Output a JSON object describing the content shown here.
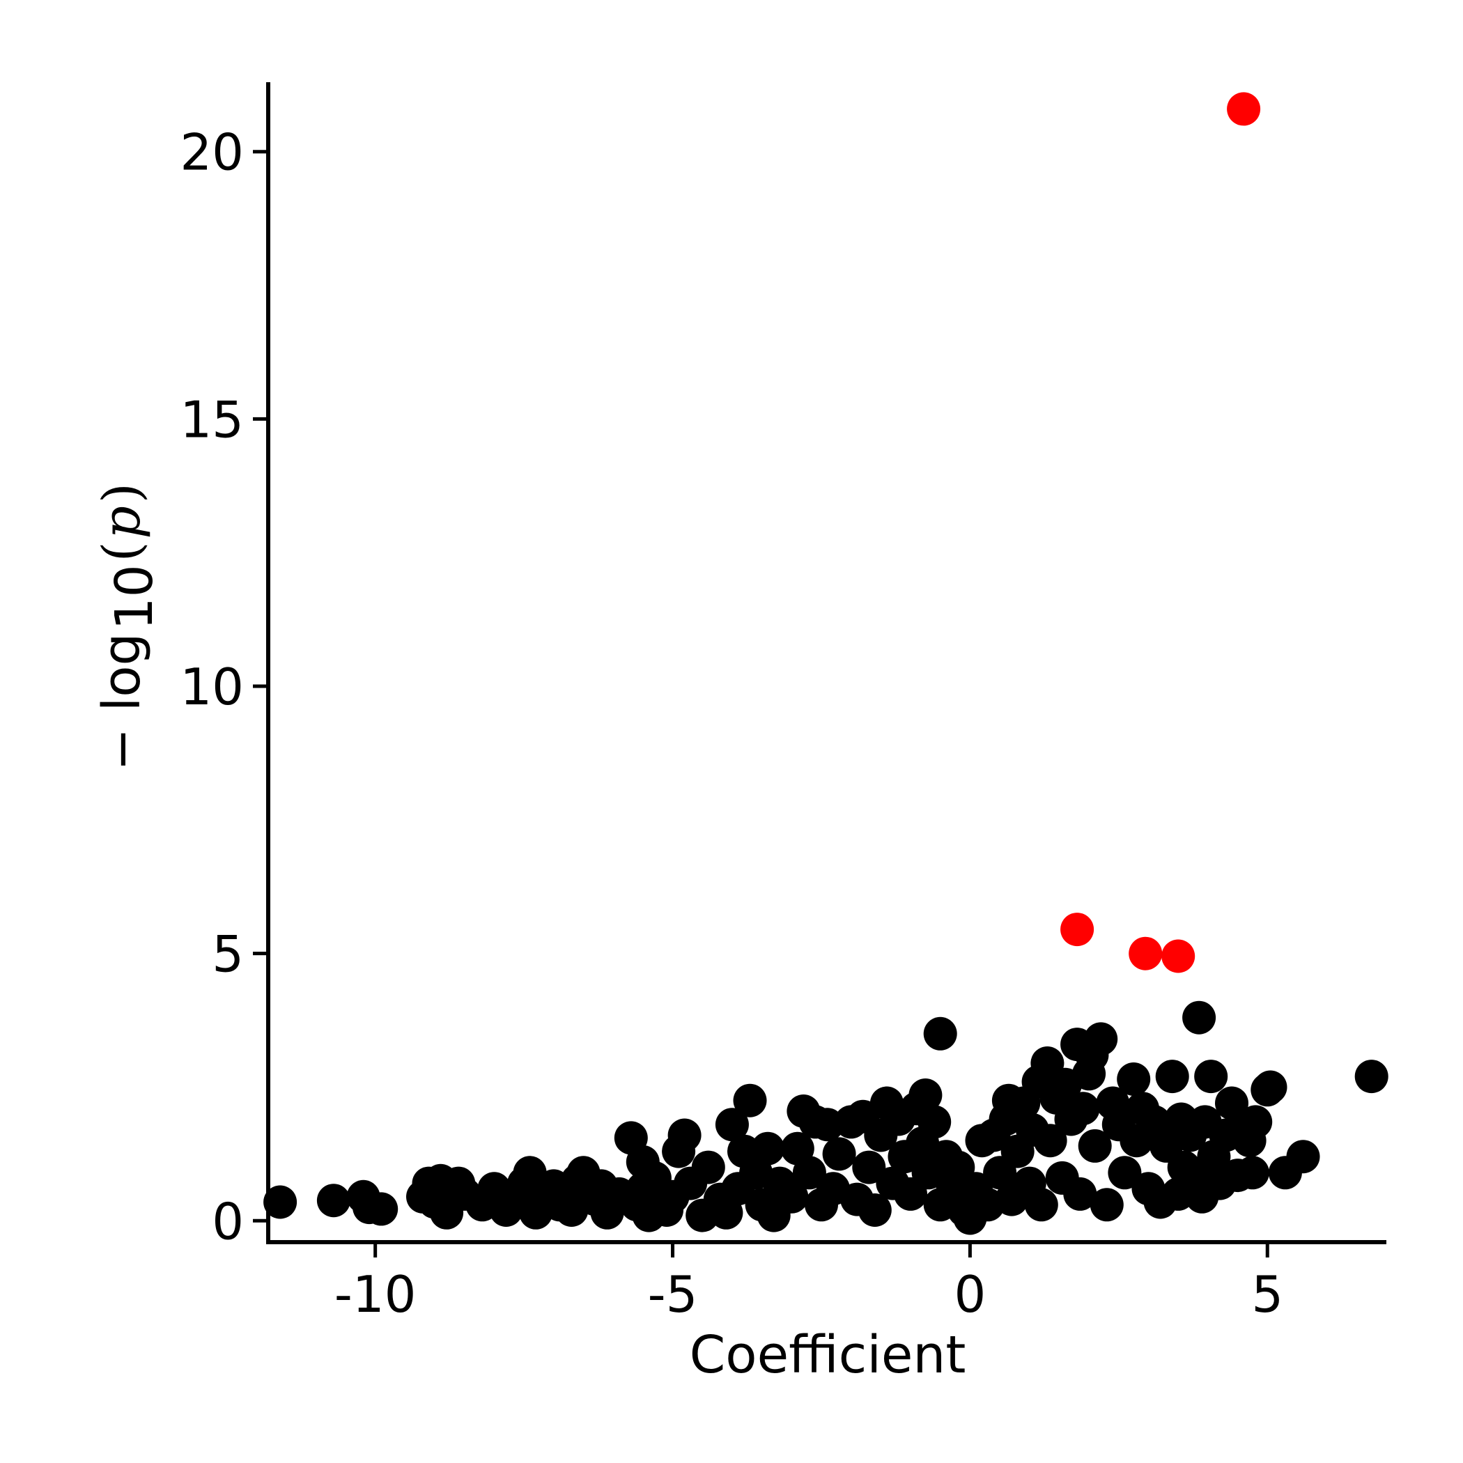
{
  "chart_data": {
    "type": "scatter",
    "title": "",
    "xlabel": "Coefficient",
    "ylabel": "− log10(p)",
    "ylabel_parts": {
      "prefix": "− log",
      "subscript": "10",
      "open": "(",
      "var": "p",
      "close": ")"
    },
    "xlim": [
      -11.8,
      7.0
    ],
    "ylim": [
      -0.4,
      21.3
    ],
    "xticks": [
      -10,
      -5,
      0,
      5
    ],
    "xtick_labels": [
      "-10",
      "-5",
      "0",
      "5"
    ],
    "yticks": [
      0,
      5,
      10,
      15,
      20
    ],
    "ytick_labels": [
      "0",
      "5",
      "10",
      "15",
      "20"
    ],
    "grid": false,
    "colors": {
      "default": "#000000",
      "significant": "#ff0000",
      "axis": "#000000"
    },
    "series": [
      {
        "color": "#000000",
        "points": [
          [
            -11.6,
            0.35
          ],
          [
            -10.7,
            0.38
          ],
          [
            -10.2,
            0.45
          ],
          [
            -10.1,
            0.25
          ],
          [
            -9.9,
            0.22
          ],
          [
            -9.2,
            0.45
          ],
          [
            -9.1,
            0.7
          ],
          [
            -9.0,
            0.35
          ],
          [
            -8.9,
            0.75
          ],
          [
            -8.8,
            0.55
          ],
          [
            -8.8,
            0.15
          ],
          [
            -8.6,
            0.7
          ],
          [
            -8.5,
            0.5
          ],
          [
            -8.2,
            0.3
          ],
          [
            -8.0,
            0.6
          ],
          [
            -7.8,
            0.2
          ],
          [
            -7.7,
            0.4
          ],
          [
            -7.5,
            0.7
          ],
          [
            -7.4,
            0.9
          ],
          [
            -7.3,
            0.15
          ],
          [
            -7.1,
            0.45
          ],
          [
            -7.0,
            0.65
          ],
          [
            -6.9,
            0.3
          ],
          [
            -6.7,
            0.2
          ],
          [
            -6.6,
            0.75
          ],
          [
            -6.5,
            0.9
          ],
          [
            -6.3,
            0.4
          ],
          [
            -6.2,
            0.65
          ],
          [
            -6.1,
            0.15
          ],
          [
            -5.9,
            0.5
          ],
          [
            -5.7,
            1.55
          ],
          [
            -5.6,
            0.3
          ],
          [
            -5.5,
            1.1
          ],
          [
            -5.5,
            0.6
          ],
          [
            -5.4,
            0.1
          ],
          [
            -5.3,
            0.8
          ],
          [
            -5.1,
            0.2
          ],
          [
            -5.0,
            0.45
          ],
          [
            -4.9,
            1.3
          ],
          [
            -4.8,
            1.6
          ],
          [
            -4.7,
            0.7
          ],
          [
            -4.5,
            0.1
          ],
          [
            -4.4,
            1.0
          ],
          [
            -4.2,
            0.4
          ],
          [
            -4.1,
            0.15
          ],
          [
            -4.0,
            1.8
          ],
          [
            -3.9,
            0.6
          ],
          [
            -3.8,
            1.3
          ],
          [
            -3.7,
            2.25
          ],
          [
            -3.6,
            0.9
          ],
          [
            -3.5,
            0.3
          ],
          [
            -3.4,
            1.35
          ],
          [
            -3.3,
            0.1
          ],
          [
            -3.2,
            0.7
          ],
          [
            -3.0,
            0.45
          ],
          [
            -2.9,
            1.35
          ],
          [
            -2.8,
            2.05
          ],
          [
            -2.7,
            0.9
          ],
          [
            -2.6,
            1.85
          ],
          [
            -2.5,
            0.3
          ],
          [
            -2.4,
            1.8
          ],
          [
            -2.3,
            0.6
          ],
          [
            -2.2,
            1.25
          ],
          [
            -2.0,
            1.85
          ],
          [
            -1.9,
            0.4
          ],
          [
            -1.8,
            1.95
          ],
          [
            -1.7,
            1.0
          ],
          [
            -1.6,
            0.2
          ],
          [
            -1.5,
            1.6
          ],
          [
            -1.4,
            2.2
          ],
          [
            -1.3,
            0.7
          ],
          [
            -1.2,
            1.9
          ],
          [
            -1.1,
            1.2
          ],
          [
            -1.0,
            0.5
          ],
          [
            -0.9,
            2.1
          ],
          [
            -0.8,
            1.45
          ],
          [
            -0.75,
            2.35
          ],
          [
            -0.7,
            0.9
          ],
          [
            -0.6,
            1.85
          ],
          [
            -0.5,
            3.5
          ],
          [
            -0.5,
            0.3
          ],
          [
            -0.4,
            1.2
          ],
          [
            -0.3,
            0.7
          ],
          [
            -0.2,
            1.0
          ],
          [
            -0.1,
            0.2
          ],
          [
            0.0,
            0.05
          ],
          [
            0.1,
            0.6
          ],
          [
            0.2,
            1.5
          ],
          [
            0.3,
            0.3
          ],
          [
            0.4,
            1.6
          ],
          [
            0.5,
            0.9
          ],
          [
            0.6,
            1.9
          ],
          [
            0.65,
            2.25
          ],
          [
            0.7,
            0.4
          ],
          [
            0.8,
            1.3
          ],
          [
            0.9,
            2.2
          ],
          [
            1.0,
            0.7
          ],
          [
            1.05,
            1.7
          ],
          [
            1.15,
            2.6
          ],
          [
            1.2,
            0.3
          ],
          [
            1.3,
            2.95
          ],
          [
            1.35,
            1.5
          ],
          [
            1.45,
            2.3
          ],
          [
            1.55,
            0.8
          ],
          [
            1.6,
            2.55
          ],
          [
            1.7,
            1.9
          ],
          [
            1.8,
            3.3
          ],
          [
            1.85,
            0.5
          ],
          [
            1.9,
            2.1
          ],
          [
            2.0,
            2.75
          ],
          [
            2.05,
            3.1
          ],
          [
            2.1,
            1.4
          ],
          [
            2.2,
            3.4
          ],
          [
            2.3,
            0.3
          ],
          [
            2.4,
            2.2
          ],
          [
            2.5,
            1.8
          ],
          [
            2.6,
            0.9
          ],
          [
            2.75,
            2.65
          ],
          [
            2.8,
            1.5
          ],
          [
            2.9,
            2.1
          ],
          [
            3.0,
            0.6
          ],
          [
            3.1,
            1.85
          ],
          [
            3.2,
            0.35
          ],
          [
            3.3,
            1.4
          ],
          [
            3.4,
            2.7
          ],
          [
            3.5,
            0.5
          ],
          [
            3.55,
            1.9
          ],
          [
            3.6,
            1.0
          ],
          [
            3.7,
            1.6
          ],
          [
            3.8,
            0.75
          ],
          [
            3.85,
            3.8
          ],
          [
            3.9,
            0.45
          ],
          [
            3.95,
            1.85
          ],
          [
            4.05,
            2.7
          ],
          [
            4.1,
            1.2
          ],
          [
            4.2,
            0.7
          ],
          [
            4.3,
            1.6
          ],
          [
            4.4,
            2.2
          ],
          [
            4.5,
            0.85
          ],
          [
            4.6,
            1.7
          ],
          [
            4.7,
            1.5
          ],
          [
            4.75,
            0.9
          ],
          [
            4.8,
            1.85
          ],
          [
            5.0,
            2.45
          ],
          [
            5.05,
            2.5
          ],
          [
            5.3,
            0.9
          ],
          [
            5.6,
            1.2
          ],
          [
            6.75,
            2.7
          ]
        ]
      },
      {
        "color": "#ff0000",
        "points": [
          [
            4.6,
            20.8
          ],
          [
            1.8,
            5.45
          ],
          [
            2.95,
            5.0
          ],
          [
            3.5,
            4.95
          ]
        ]
      }
    ]
  }
}
